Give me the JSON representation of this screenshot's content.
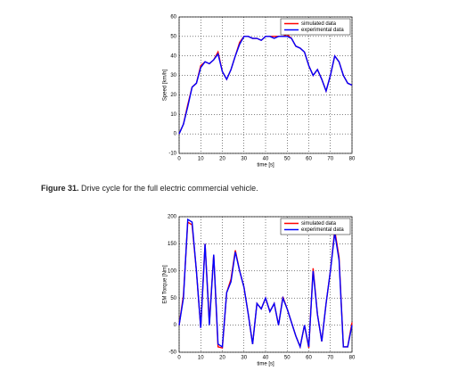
{
  "chart_data": [
    {
      "type": "line",
      "ylabel": "Speed [km/h]",
      "xlabel": "time [s]",
      "x": [
        0,
        2,
        4,
        6,
        8,
        10,
        12,
        14,
        16,
        18,
        20,
        22,
        24,
        26,
        28,
        30,
        32,
        34,
        36,
        38,
        40,
        42,
        44,
        46,
        48,
        50,
        52,
        54,
        56,
        58,
        60,
        62,
        64,
        66,
        68,
        70,
        72,
        74,
        76,
        78,
        80
      ],
      "series": [
        {
          "name": "simulated data",
          "color": "#ff0000",
          "values": [
            0,
            5,
            15,
            24,
            26,
            35,
            37,
            36,
            38,
            42,
            32,
            28,
            33,
            40,
            47,
            50,
            50,
            49,
            49,
            48,
            50,
            50,
            50,
            50,
            50,
            51,
            49,
            45,
            44,
            42,
            35,
            30,
            33,
            28,
            22,
            30,
            40,
            37,
            30,
            26,
            25
          ]
        },
        {
          "name": "experimental data",
          "color": "#0000ff",
          "values": [
            0,
            5,
            14,
            24,
            26,
            34,
            37,
            36,
            38,
            41,
            32,
            28,
            33,
            40,
            46,
            50,
            50,
            49,
            49,
            48,
            50,
            50,
            49,
            50,
            50,
            50,
            49,
            45,
            44,
            42,
            35,
            30,
            33,
            28,
            22,
            30,
            40,
            37,
            30,
            26,
            25
          ]
        }
      ],
      "xlim": [
        0,
        80
      ],
      "xticks": [
        0,
        10,
        20,
        30,
        40,
        50,
        60,
        70,
        80
      ],
      "ylim": [
        -10,
        60
      ],
      "yticks": [
        -10,
        0,
        10,
        20,
        30,
        40,
        50,
        60
      ],
      "grid": true,
      "legend": "upper right"
    },
    {
      "type": "line",
      "ylabel": "EM Torque [Nm]",
      "xlabel": "time [s]",
      "x": [
        0,
        2,
        4,
        6,
        8,
        10,
        12,
        14,
        16,
        18,
        20,
        22,
        24,
        26,
        28,
        30,
        32,
        34,
        36,
        38,
        40,
        42,
        44,
        46,
        48,
        50,
        52,
        54,
        56,
        58,
        60,
        62,
        64,
        66,
        68,
        70,
        72,
        74,
        76,
        78,
        80
      ],
      "series": [
        {
          "name": "simulated data",
          "color": "#ff0000",
          "values": [
            0,
            55,
            190,
            185,
            100,
            -5,
            150,
            5,
            130,
            -40,
            -42,
            60,
            85,
            138,
            100,
            70,
            20,
            -35,
            40,
            30,
            50,
            25,
            40,
            0,
            52,
            30,
            5,
            -20,
            -40,
            0,
            -42,
            105,
            20,
            -30,
            40,
            100,
            175,
            125,
            -40,
            -40,
            5
          ]
        },
        {
          "name": "experimental data",
          "color": "#0000ff",
          "values": [
            0,
            50,
            195,
            190,
            100,
            -5,
            150,
            0,
            130,
            -35,
            -40,
            60,
            80,
            135,
            100,
            70,
            20,
            -35,
            40,
            30,
            50,
            25,
            40,
            0,
            50,
            30,
            5,
            -20,
            -40,
            0,
            -40,
            100,
            20,
            -30,
            40,
            100,
            170,
            120,
            -40,
            -40,
            0
          ]
        }
      ],
      "xlim": [
        0,
        80
      ],
      "xticks": [
        0,
        10,
        20,
        30,
        40,
        50,
        60,
        70,
        80
      ],
      "ylim": [
        -50,
        200
      ],
      "yticks": [
        -50,
        0,
        50,
        100,
        150,
        200
      ],
      "grid": true,
      "legend": "upper right"
    }
  ],
  "caption": {
    "label": "Figure 31.",
    "text": "Drive cycle for the full electric commercial vehicle."
  }
}
